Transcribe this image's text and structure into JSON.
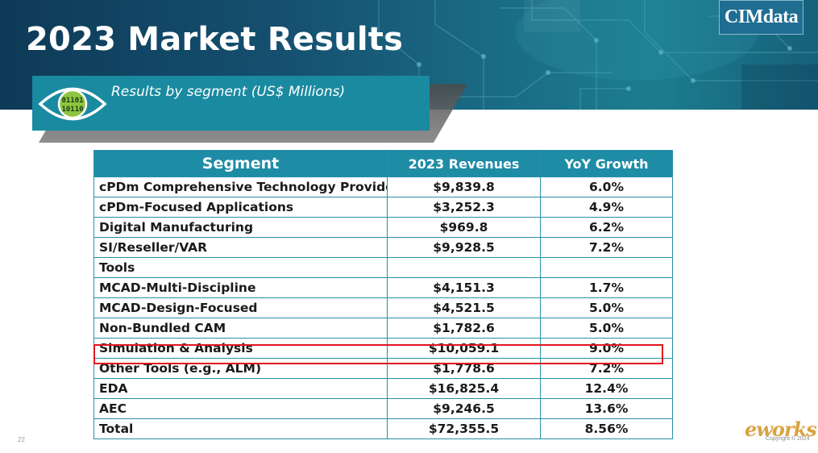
{
  "slide": {
    "title": "2023 Market Results",
    "subtitle": "Results by segment (US$ Millions)",
    "page_number": "22",
    "logo_text": "CIMdata",
    "watermark": {
      "brand": "eworks",
      "copyright": "Copyright © 2024"
    }
  },
  "table": {
    "headers": [
      "Segment",
      "2023 Revenues",
      "YoY Growth"
    ],
    "rows": [
      {
        "segment": "cPDm Comprehensive Technology Providers",
        "revenue": "$9,839.8",
        "growth": "6.0%"
      },
      {
        "segment": "cPDm-Focused Applications",
        "revenue": "$3,252.3",
        "growth": "4.9%"
      },
      {
        "segment": "Digital Manufacturing",
        "revenue": "$969.8",
        "growth": "6.2%"
      },
      {
        "segment": "SI/Reseller/VAR",
        "revenue": "$9,928.5",
        "growth": "7.2%"
      },
      {
        "segment": "Tools",
        "revenue": "",
        "growth": ""
      },
      {
        "segment": "MCAD-Multi-Discipline",
        "revenue": "$4,151.3",
        "growth": "1.7%"
      },
      {
        "segment": "MCAD-Design-Focused",
        "revenue": "$4,521.5",
        "growth": "5.0%"
      },
      {
        "segment": "Non-Bundled CAM",
        "revenue": "$1,782.6",
        "growth": "5.0%"
      },
      {
        "segment": "Simulation & Analysis",
        "revenue": "$10,059.1",
        "growth": "9.0%"
      },
      {
        "segment": "Other Tools (e.g., ALM)",
        "revenue": "$1,778.6",
        "growth": "7.2%"
      },
      {
        "segment": "EDA",
        "revenue": "$16,825.4",
        "growth": "12.4%"
      },
      {
        "segment": "AEC",
        "revenue": "$9,246.5",
        "growth": "13.6%"
      },
      {
        "segment": "Total",
        "revenue": "$72,355.5",
        "growth": "8.56%"
      }
    ]
  },
  "colors": {
    "banner_dark": "#0e3a57",
    "accent_teal": "#1f8ca6",
    "highlight_red": "#e0161e"
  },
  "icons": {
    "subtitle_icon": "eye-binary-icon"
  }
}
